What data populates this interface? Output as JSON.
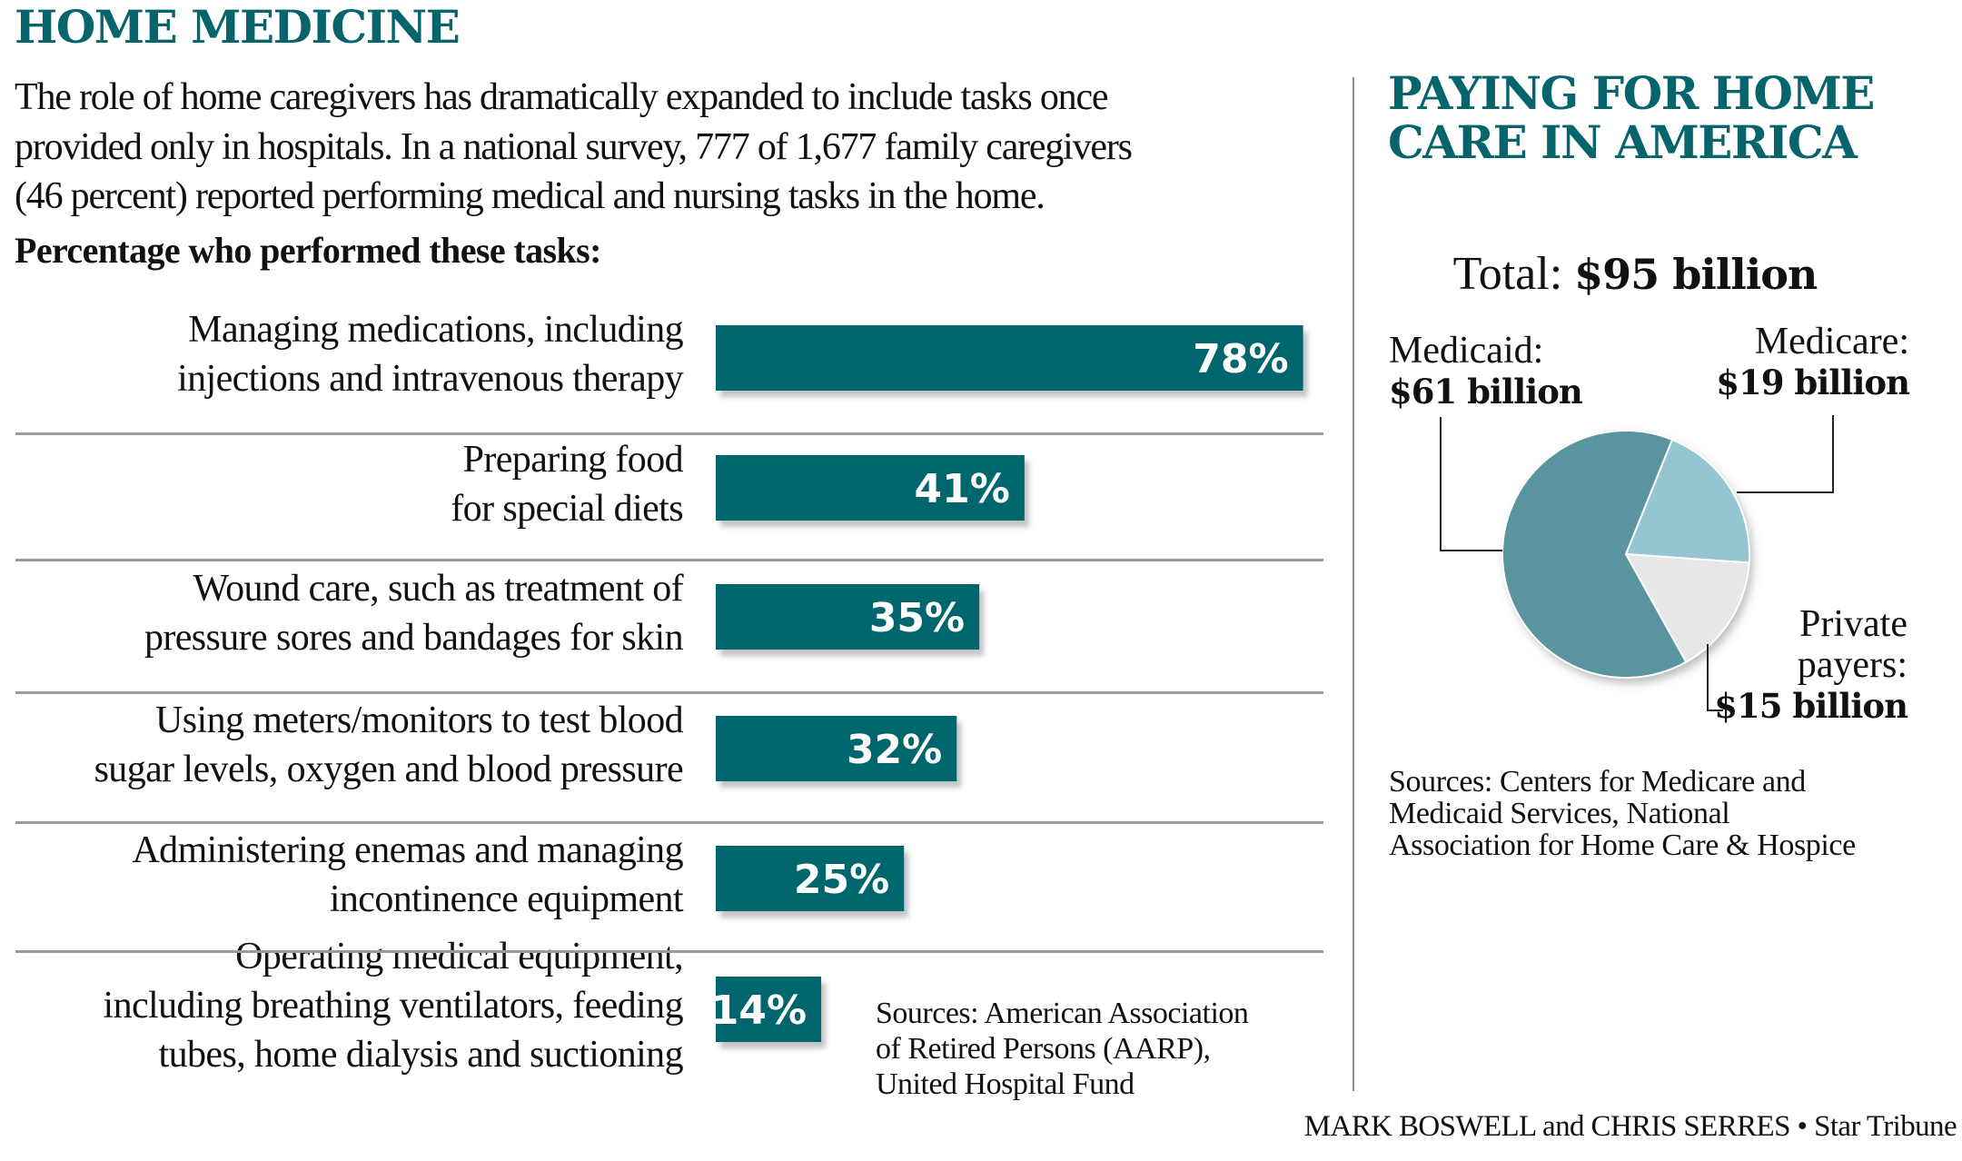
{
  "left": {
    "title": "HOME MEDICINE",
    "intro_lines": [
      "The role of home caregivers has dramatically expanded to include tasks once",
      "provided only in hospitals. In a national survey, 777 of 1,677 family caregivers",
      "(46 percent) reported performing medical and nursing tasks in the home."
    ],
    "subhead": "Percentage who performed these tasks:",
    "sources_lines": [
      "Sources: American Association",
      "of Retired Persons (AARP),",
      "United Hospital Fund"
    ]
  },
  "right": {
    "title_lines": [
      "PAYING FOR HOME",
      "CARE IN AMERICA"
    ],
    "total_prefix": "Total: ",
    "total_value": "$95 billion",
    "labels": {
      "medicaid": {
        "name": "Medicaid:",
        "value": "$61 billion"
      },
      "medicare": {
        "name": "Medicare:",
        "value": "$19 billion"
      },
      "private": {
        "name_lines": [
          "Private",
          "payers:"
        ],
        "value": "$15 billion"
      }
    },
    "sources_lines": [
      "Sources: Centers for Medicare and",
      "Medicaid Services, National",
      "Association for Home Care & Hospice"
    ]
  },
  "credit": "MARK BOSWELL and CHRIS SERRES • Star Tribune",
  "colors": {
    "accent": "#05646c",
    "bar": "#04666e",
    "medicaid": "#5a949e",
    "medicare": "#94c5d1",
    "private": "#e6e7e7"
  },
  "chart_data": [
    {
      "type": "bar",
      "orientation": "horizontal",
      "title": "Percentage who performed these tasks:",
      "unit": "%",
      "categories": [
        [
          "Managing medications, including",
          "injections and intravenous therapy"
        ],
        [
          "Preparing food",
          "for special diets"
        ],
        [
          "Wound care, such as treatment of",
          "pressure sores and bandages for skin"
        ],
        [
          "Using meters/monitors to test blood",
          "sugar levels, oxygen and blood pressure"
        ],
        [
          "Administering enemas and managing",
          "incontinence equipment"
        ],
        [
          "Operating medical equipment,",
          "including breathing ventilators, feeding",
          "tubes, home dialysis and suctioning"
        ]
      ],
      "values": [
        78,
        41,
        35,
        32,
        25,
        14
      ],
      "value_labels": [
        "78%",
        "41%",
        "35%",
        "32%",
        "25%",
        "14%"
      ],
      "xlim": [
        0,
        100
      ],
      "grid": false
    },
    {
      "type": "pie",
      "title": "Total: $95 billion",
      "categories": [
        "Medicaid",
        "Medicare",
        "Private payers"
      ],
      "values": [
        61,
        19,
        15
      ],
      "unit": "billion USD",
      "legend": "none"
    }
  ]
}
